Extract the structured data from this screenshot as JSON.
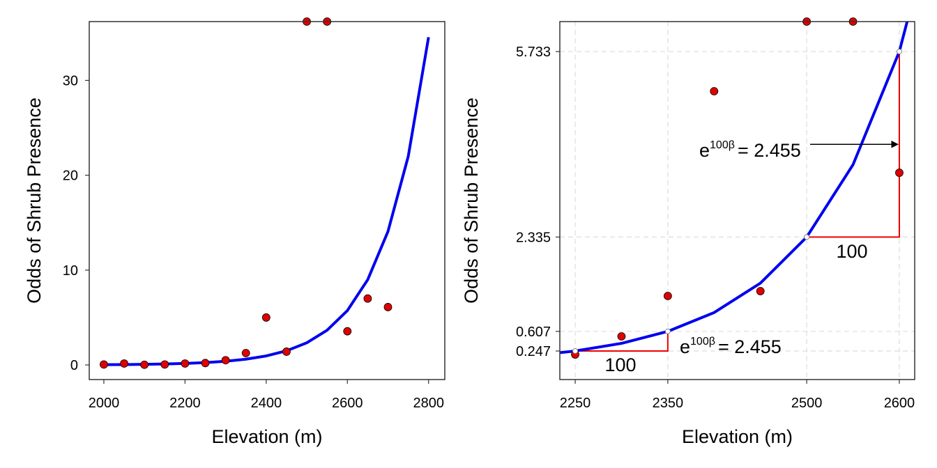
{
  "chart_data": [
    {
      "type": "scatter-line",
      "xlabel": "Elevation (m)",
      "ylabel": "Odds of Shrub Presence",
      "xlim": [
        1964,
        2840
      ],
      "ylim": [
        -1.54,
        36.2
      ],
      "xticks": [
        2000,
        2200,
        2400,
        2600,
        2800
      ],
      "yticks": [
        0,
        10,
        20,
        30
      ],
      "grid": false,
      "points": {
        "color": "#e00000",
        "x": [
          2000,
          2050,
          2100,
          2150,
          2200,
          2250,
          2300,
          2350,
          2400,
          2450,
          2500,
          2550,
          2600,
          2650,
          2700
        ],
        "values": [
          0.05,
          0.15,
          0.02,
          0.05,
          0.15,
          0.2,
          0.5,
          1.25,
          5.0,
          1.4,
          36.2,
          36.2,
          3.55,
          7.0,
          6.1
        ]
      },
      "curve": {
        "color": "#0000ee",
        "x": [
          2000,
          2050,
          2100,
          2150,
          2200,
          2250,
          2300,
          2350,
          2400,
          2450,
          2500,
          2550,
          2600,
          2650,
          2700,
          2750,
          2800
        ],
        "values": [
          0.026,
          0.041,
          0.064,
          0.101,
          0.158,
          0.247,
          0.387,
          0.607,
          0.951,
          1.49,
          2.335,
          3.66,
          5.733,
          8.98,
          14.07,
          22.0,
          34.55
        ]
      }
    },
    {
      "type": "scatter-line",
      "xlabel": "Elevation (m)",
      "ylabel": "Odds of Shrub Presence",
      "xlim": [
        2233.4,
        2616.6
      ],
      "ylim": [
        -0.276,
        6.282
      ],
      "xticks": [
        2250,
        2350,
        2500,
        2600
      ],
      "yticks": [
        0.247,
        0.607,
        2.335,
        5.733
      ],
      "grid": true,
      "points": {
        "color": "#e00000",
        "x": [
          2250,
          2300,
          2350,
          2400,
          2450,
          2500,
          2550,
          2600
        ],
        "values": [
          0.183,
          0.515,
          1.255,
          5.006,
          1.344,
          6.282,
          6.282,
          3.513
        ]
      },
      "curve": {
        "color": "#0000ee",
        "x": [
          2200,
          2250,
          2300,
          2350,
          2400,
          2450,
          2500,
          2550,
          2600,
          2650
        ],
        "values": [
          0.158,
          0.247,
          0.387,
          0.607,
          0.951,
          1.49,
          2.335,
          3.66,
          5.733,
          8.98
        ]
      },
      "annotations": [
        {
          "text": "100"
        },
        {
          "base": "e",
          "sup": "100β",
          "text": "= 2.455"
        },
        {
          "text": "100"
        },
        {
          "base": "e",
          "sup": "100β",
          "text": "= 2.455"
        }
      ]
    }
  ]
}
